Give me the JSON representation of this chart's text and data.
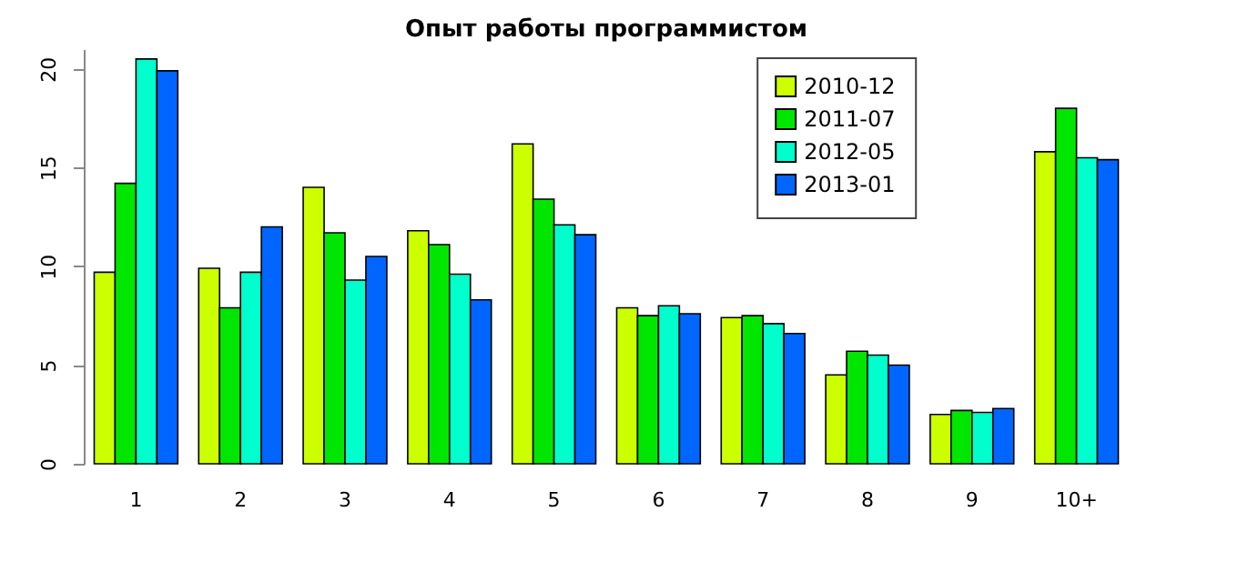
{
  "chart_data": {
    "type": "bar",
    "title": "Опыт работы программистом",
    "categories": [
      "1",
      "2",
      "3",
      "4",
      "5",
      "6",
      "7",
      "8",
      "9",
      "10+"
    ],
    "series": [
      {
        "name": "2010-12",
        "color": "#ccff00",
        "values": [
          9.7,
          9.9,
          14.0,
          11.8,
          16.2,
          7.9,
          7.4,
          4.5,
          2.5,
          15.8
        ]
      },
      {
        "name": "2011-07",
        "color": "#00e600",
        "values": [
          14.2,
          7.9,
          11.7,
          11.1,
          13.4,
          7.5,
          7.5,
          5.7,
          2.7,
          18.0
        ]
      },
      {
        "name": "2012-05",
        "color": "#00ffcc",
        "values": [
          20.5,
          9.7,
          9.3,
          9.6,
          12.1,
          8.0,
          7.1,
          5.5,
          2.6,
          15.5
        ]
      },
      {
        "name": "2013-01",
        "color": "#0066ff",
        "values": [
          19.9,
          12.0,
          10.5,
          8.3,
          11.6,
          7.6,
          6.6,
          5.0,
          2.8,
          15.4
        ]
      }
    ],
    "ylim": [
      0,
      21
    ],
    "yticks": [
      0,
      5,
      10,
      15,
      20
    ],
    "grid": false,
    "legend": "top right"
  }
}
